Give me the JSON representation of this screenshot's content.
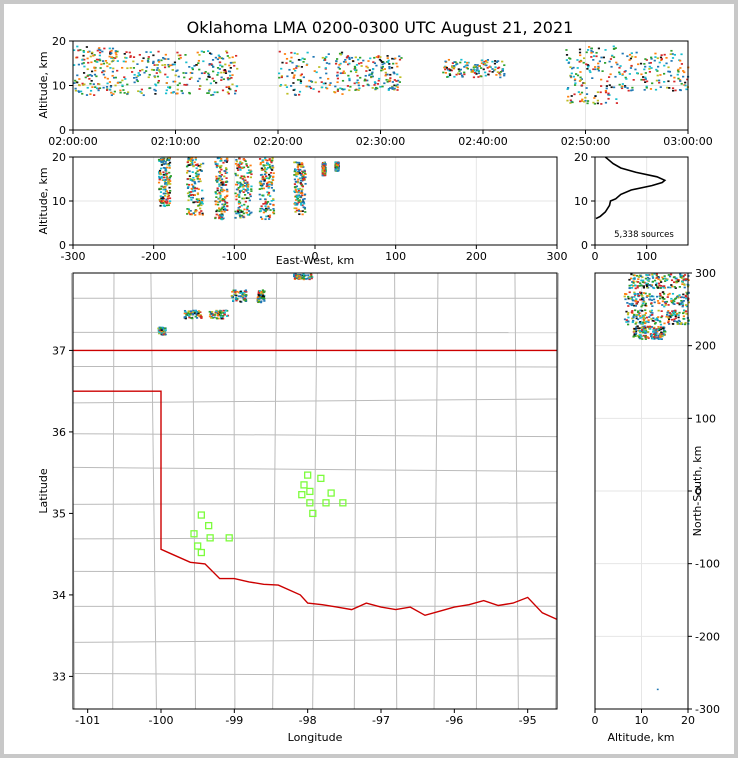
{
  "chart_data": {
    "type": "scatter",
    "title": "Oklahoma LMA 0200-0300 UTC August 21, 2021",
    "colors": {
      "low": "#1f77b4",
      "mid1": "#17becf",
      "mid2": "#2ca02c",
      "mid3": "#bcbd22",
      "mid4": "#ff7f0e",
      "high": "#d62728",
      "dense": "#111111",
      "border": "#cc0000",
      "county": "#bbbbbb",
      "station": "#7cfc3c",
      "grid": "#e6e6e6"
    },
    "time": {
      "xlim": [
        0,
        60
      ],
      "ylim": [
        0,
        20
      ],
      "ylabel": "Altitude, km",
      "xticks": [
        0,
        10,
        20,
        30,
        40,
        50,
        60
      ],
      "xtick_labels": [
        "02:00:00",
        "02:10:00",
        "02:20:00",
        "02:30:00",
        "02:40:00",
        "02:50:00",
        "03:00:00"
      ],
      "yticks": [
        0,
        10,
        20
      ],
      "clusters": [
        {
          "t": [
            0,
            4
          ],
          "z": [
            8,
            19
          ]
        },
        {
          "t": [
            4,
            10
          ],
          "z": [
            8,
            18
          ]
        },
        {
          "t": [
            10,
            16
          ],
          "z": [
            8,
            18
          ]
        },
        {
          "t": [
            20,
            27
          ],
          "z": [
            8,
            18
          ]
        },
        {
          "t": [
            27,
            32
          ],
          "z": [
            9,
            17
          ]
        },
        {
          "t": [
            36,
            42
          ],
          "z": [
            12,
            16
          ]
        },
        {
          "t": [
            48,
            53
          ],
          "z": [
            6,
            19
          ]
        },
        {
          "t": [
            53,
            60
          ],
          "z": [
            9,
            18
          ]
        }
      ]
    },
    "ew": {
      "xlim": [
        -300,
        300
      ],
      "ylim": [
        0,
        20
      ],
      "xlabel": "East-West, km",
      "ylabel": "Altitude, km",
      "xticks": [
        -300,
        -200,
        -100,
        0,
        100,
        200,
        300
      ],
      "yticks": [
        0,
        10,
        20
      ],
      "clusters": [
        {
          "x": [
            -195,
            -180
          ],
          "z": [
            9,
            20
          ]
        },
        {
          "x": [
            -160,
            -140
          ],
          "z": [
            7,
            20
          ]
        },
        {
          "x": [
            -125,
            -110
          ],
          "z": [
            6,
            20
          ]
        },
        {
          "x": [
            -100,
            -80
          ],
          "z": [
            6,
            20
          ]
        },
        {
          "x": [
            -70,
            -52
          ],
          "z": [
            6,
            20
          ]
        },
        {
          "x": [
            -27,
            -13
          ],
          "z": [
            7,
            19
          ]
        },
        {
          "x": [
            8,
            12
          ],
          "z": [
            16,
            19
          ]
        },
        {
          "x": [
            24,
            28
          ],
          "z": [
            17,
            19
          ]
        }
      ]
    },
    "hist": {
      "xlim": [
        0,
        180
      ],
      "ylim": [
        0,
        20
      ],
      "xticks": [
        0,
        100
      ],
      "yticks": [
        0,
        10,
        20
      ],
      "annotation": "5,338 sources",
      "profile": [
        [
          2,
          6
        ],
        [
          10,
          6.5
        ],
        [
          20,
          7.5
        ],
        [
          28,
          9
        ],
        [
          30,
          10
        ],
        [
          40,
          10.5
        ],
        [
          50,
          11.5
        ],
        [
          70,
          12.5
        ],
        [
          110,
          13.5
        ],
        [
          130,
          14.2
        ],
        [
          135,
          14.7
        ],
        [
          120,
          15.5
        ],
        [
          80,
          16.5
        ],
        [
          50,
          17.5
        ],
        [
          35,
          18.5
        ],
        [
          25,
          19.5
        ],
        [
          20,
          20
        ]
      ]
    },
    "map": {
      "xlim": [
        -101.2,
        -94.6
      ],
      "ylim": [
        32.6,
        37.95
      ],
      "xlabel": "Longitude",
      "ylabel": "Latitude",
      "xticks": [
        -101,
        -100,
        -99,
        -98,
        -97,
        -96,
        -95
      ],
      "yticks": [
        33,
        34,
        35,
        36,
        37
      ],
      "clusters": [
        {
          "lon": [
            -100.05,
            -99.95
          ],
          "lat": [
            37.2,
            37.3
          ]
        },
        {
          "lon": [
            -99.7,
            -99.45
          ],
          "lat": [
            37.4,
            37.5
          ]
        },
        {
          "lon": [
            -99.35,
            -99.1
          ],
          "lat": [
            37.4,
            37.5
          ]
        },
        {
          "lon": [
            -99.05,
            -98.85
          ],
          "lat": [
            37.6,
            37.75
          ]
        },
        {
          "lon": [
            -98.7,
            -98.6
          ],
          "lat": [
            37.6,
            37.75
          ]
        },
        {
          "lon": [
            -98.2,
            -97.95
          ],
          "lat": [
            37.88,
            37.95
          ]
        }
      ],
      "stations": [
        [
          -99.45,
          34.98
        ],
        [
          -99.35,
          34.85
        ],
        [
          -99.55,
          34.75
        ],
        [
          -99.33,
          34.7
        ],
        [
          -99.5,
          34.6
        ],
        [
          -99.45,
          34.52
        ],
        [
          -99.07,
          34.7
        ],
        [
          -98.0,
          35.47
        ],
        [
          -98.05,
          35.35
        ],
        [
          -98.08,
          35.23
        ],
        [
          -97.97,
          35.27
        ],
        [
          -97.82,
          35.43
        ],
        [
          -97.68,
          35.25
        ],
        [
          -97.97,
          35.13
        ],
        [
          -97.75,
          35.13
        ],
        [
          -97.52,
          35.13
        ],
        [
          -97.93,
          35.0
        ]
      ]
    },
    "ns": {
      "xlim": [
        0,
        20
      ],
      "ylim": [
        -300,
        300
      ],
      "xlabel": "Altitude, km",
      "ylabel": "North-South, km",
      "xticks": [
        0,
        10,
        20
      ],
      "yticks": [
        -300,
        -200,
        -100,
        0,
        100,
        200,
        300
      ],
      "clusters": [
        {
          "z": [
            7,
            20
          ],
          "y": [
            280,
            300
          ]
        },
        {
          "z": [
            6,
            20
          ],
          "y": [
            255,
            275
          ]
        },
        {
          "z": [
            6,
            20
          ],
          "y": [
            230,
            250
          ]
        },
        {
          "z": [
            8,
            15
          ],
          "y": [
            210,
            228
          ]
        }
      ]
    }
  }
}
